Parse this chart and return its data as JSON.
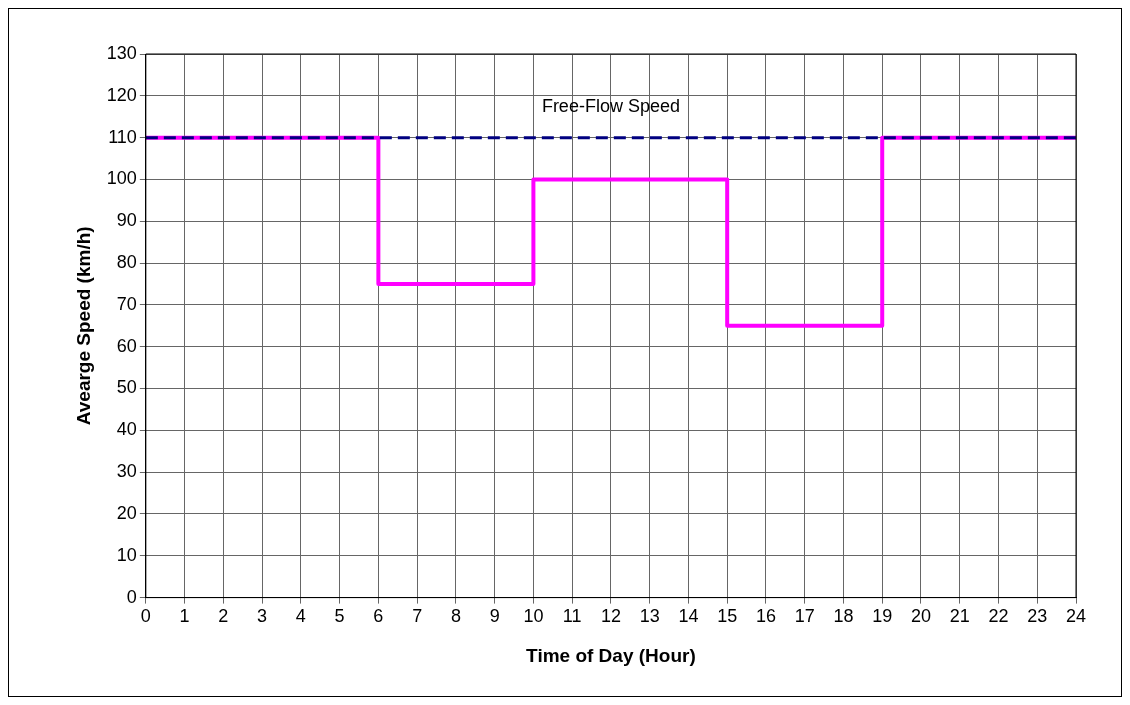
{
  "chart_data": {
    "type": "step",
    "xlabel": "Time of Day (Hour)",
    "ylabel": "Avearge Speed (km/h)",
    "x": [
      0,
      6,
      10,
      15,
      19,
      24
    ],
    "series": [
      {
        "color": "#ff00ff",
        "values": [
          110,
          75,
          100,
          65,
          110,
          110
        ]
      }
    ],
    "xlim": [
      0,
      24
    ],
    "xticks": [
      0,
      1,
      2,
      3,
      4,
      5,
      6,
      7,
      8,
      9,
      10,
      11,
      12,
      13,
      14,
      15,
      16,
      17,
      18,
      19,
      20,
      21,
      22,
      23,
      24
    ],
    "ylim": [
      0,
      130
    ],
    "yticks": [
      0,
      10,
      20,
      30,
      40,
      50,
      60,
      70,
      80,
      90,
      100,
      110,
      120,
      130
    ],
    "ref_lines": [
      {
        "axis": "y",
        "value": 110,
        "label": "Free-Flow Speed",
        "color": "#000080",
        "line_style": "dashed"
      }
    ],
    "grid": true,
    "legend": false,
    "marker": "none",
    "line_style": "solid"
  }
}
